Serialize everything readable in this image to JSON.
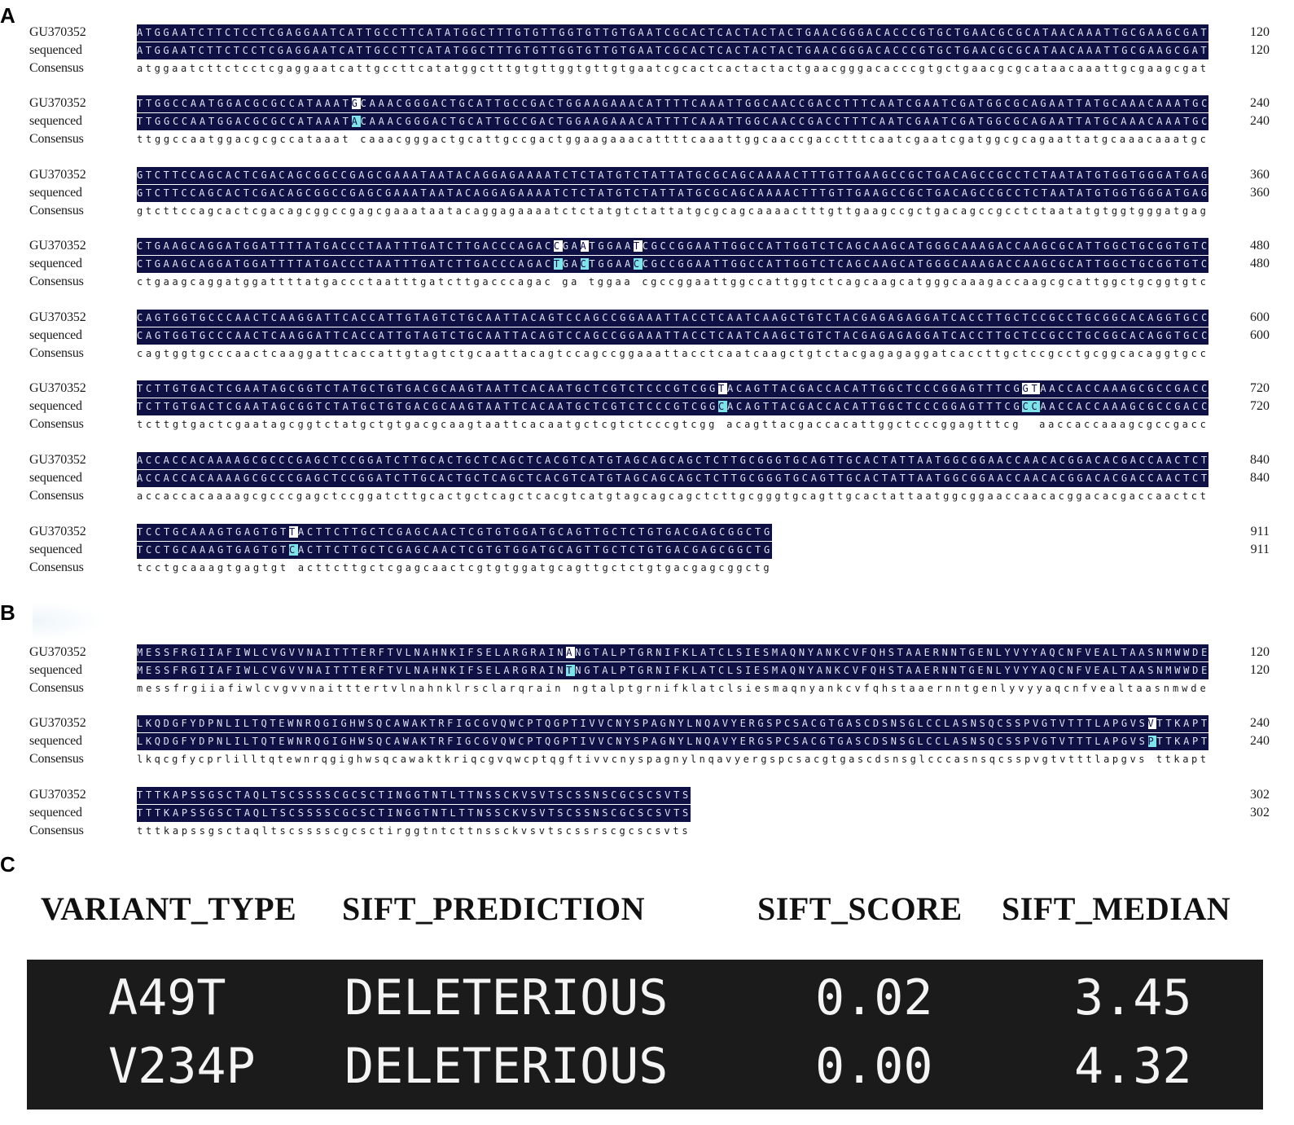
{
  "panels": {
    "a": "A",
    "b": "B",
    "c": "C"
  },
  "row_labels": {
    "ref": "GU370352",
    "seq": "sequenced",
    "cons": "Consensus"
  },
  "colors": {
    "aligned_bg": "#0f1044",
    "mismatch_highlight": "#7fe3ea",
    "table_bg": "#1b1b1b"
  },
  "panel_a_blocks": [
    {
      "ref": "ATGGAATCTTCTCCTCGAGGAATCATTGCCTTCATATGGCTTTGTGTTGGTGTTGTGAATCGCACTCACTACTACTGAACGGGACACCCGTGCTGAACGCGCATAACAAATTGCGAAGCGAT",
      "seq": "ATGGAATCTTCTCCTCGAGGAATCATTGCCTTCATATGGCTTTGTGTTGGTGTTGTGAATCGCACTCACTACTACTGAACGGGACACCCGTGCTGAACGCGCATAACAAATTGCGAAGCGAT",
      "cons": "atggaatcttctcctcgaggaatcattgccttcatatggctttgtgttggtgttgtgaatcgcactcactactactgaacgggacacccgtgctgaacgcgcataacaaattgcgaagcgat",
      "num": "120",
      "mismatch": [],
      "width": 1316
    },
    {
      "ref": "TTGGCCAATGGACGCGCCATAAATGCAAACGGGACTGCATTGCCGACTGGAAGAAACATTTTCAAATTGGCAACCGACCTTTCAATCGAATCGATGGCGCAGAATTATGCAAACAAATGC",
      "seq": "TTGGCCAATGGACGCGCCATAAATACAAACGGGACTGCATTGCCGACTGGAAGAAACATTTTCAAATTGGCAACCGACCTTTCAATCGAATCGATGGCGCAGAATTATGCAAACAAATGC",
      "cons": "ttggccaatggacgcgccataaat caaacgggactgcattgccgactggaagaaacattttcaaattggcaaccgacctttcaatcgaatcgatggcgcagaattatgcaaacaaatgc",
      "num": "240",
      "mismatch": [
        24
      ],
      "width": 1316
    },
    {
      "ref": "GTCTTCCAGCACTCGACAGCGGCCGAGCGAAATAATACAGGAGAAAATCTCTATGTCTATTATGCGCAGCAAAACTTTGTTGAAGCCGCTGACAGCCGCCTCTAATATGTGGTGGGATGAG",
      "seq": "GTCTTCCAGCACTCGACAGCGGCCGAGCGAAATAATACAGGAGAAAATCTCTATGTCTATTATGCGCAGCAAAACTTTGTTGAAGCCGCTGACAGCCGCCTCTAATATGTGGTGGGATGAG",
      "cons": "gtcttccagcactcgacagcggccgagcgaaataatacaggagaaaatctctatgtctattatgcgcagcaaaactttgttgaagccgctgacagccgcctctaatatgtggtgggatgag",
      "num": "360",
      "mismatch": [],
      "width": 1316
    },
    {
      "ref": "CTGAAGCAGGATGGATTTTATGACCCTAATTTGATCTTGACCCAGACCGAATGGAATCGCCGGAATTGGCCATTGGTCTCAGCAAGCATGGGCAAAGACCAAGCGCATTGGCTGCGGTGTC",
      "seq": "CTGAAGCAGGATGGATTTTATGACCCTAATTTGATCTTGACCCAGACTGACTGGAACCGCCGGAATTGGCCATTGGTCTCAGCAAGCATGGGCAAAGACCAAGCGCATTGGCTGCGGTGTC",
      "cons": "ctgaagcaggatggattttatgaccctaatttgatcttgacccagac ga tggaa cgccggaattggccattggtctcagcaagcatgggcaaagaccaagcgcattggctgcggtgtc",
      "num": "480",
      "mismatch": [
        47,
        50,
        56
      ],
      "width": 1316
    },
    {
      "ref": "CAGTGGTGCCCAACTCAAGGATTCACCATTGTAGTCTGCAATTACAGTCCAGCCGGAAATTACCTCAATCAAGCTGTCTACGAGAGAGGATCACCTTGCTCCGCCTGCGGCACAGGTGCC",
      "seq": "CAGTGGTGCCCAACTCAAGGATTCACCATTGTAGTCTGCAATTACAGTCCAGCCGGAAATTACCTCAATCAAGCTGTCTACGAGAGAGGATCACCTTGCTCCGCCTGCGGCACAGGTGCC",
      "cons": "cagtggtgcccaactcaaggattcaccattgtagtctgcaattacagtccagccggaaattacctcaatcaagctgtctacgagagaggatcaccttgctccgcctgcggcacaggtgcc",
      "num": "600",
      "mismatch": [],
      "width": 1316
    },
    {
      "ref": "TCTTGTGACTCGAATAGCGGTCTATGCTGTGACGCAAGTAATTCACAATGCTCGTCTCCCGTCGGTACAGTTACGACCACATTGGCTCCCGGAGTTTCGGTAACCACCAAAGCGCCGACC",
      "seq": "TCTTGTGACTCGAATAGCGGTCTATGCTGTGACGCAAGTAATTCACAATGCTCGTCTCCCGTCGGCACAGTTACGACCACATTGGCTCCCGGAGTTTCGCCAACCACCAAAGCGCCGACC",
      "cons": "tcttgtgactcgaatagcggtctatgctgtgacgcaagtaattcacaatgctcgtctcccgtcgg acagttacgaccacattggctcccggagtttcg  aaccaccaaagcgccgacc",
      "num": "720",
      "mismatch": [
        65,
        99,
        100
      ],
      "width": 1316
    },
    {
      "ref": "ACCACCACAAAAGCGCCCGAGCTCCGGATCTTGCACTGCTCAGCTCACGTCATGTAGCAGCAGCTCTTGCGGGTGCAGTTGCACTATTAATGGCGGAACCAACACGGACACGACCAACTCT",
      "seq": "ACCACCACAAAAGCGCCCGAGCTCCGGATCTTGCACTGCTCAGCTCACGTCATGTAGCAGCAGCTCTTGCGGGTGCAGTTGCACTATTAATGGCGGAACCAACACGGACACGACCAACTCT",
      "cons": "accaccacaaaagcgcccgagctccggatcttgcactgctcagctcacgtcatgtagcagcagctcttgcgggtgcagttgcactattaatggcggaaccaacacggacacgaccaactct",
      "num": "840",
      "mismatch": [],
      "width": 1316
    },
    {
      "ref": "TCCTGCAAAGTGAGTGTTACTTCTTGCTCGAGCAACTCGTGTGGATGCAGTTGCTCTGTGACGAGCGGCTG",
      "seq": "TCCTGCAAAGTGAGTGTCACTTCTTGCTCGAGCAACTCGTGTGGATGCAGTTGCTCTGTGACGAGCGGCTG",
      "cons": "tcctgcaaagtgagtgt acttcttgctcgagcaactcgtgtggatgcagttgctctgtgacgagcggctg",
      "num": "911",
      "mismatch": [
        17
      ],
      "width": 780
    }
  ],
  "panel_b_blocks": [
    {
      "ref": "MESSFRGIIAFIWLCVGVVNAITTTERFTVLNAHNKIFSELARGRAINANGTALPTGRNIFKLATCLSIESMAQNYANKCVFQHSTAAERNNTGENLYVYYAQCNFVEALTAASNMWWDE",
      "seq": "MESSFRGIIAFIWLCVGVVNAITTTERFTVLNAHNKIFSELARGRAINTNGTALPTGRNIFKLATCLSIESMAQNYANKCVFQHSTAAERNNTGENLYVYYAQCNFVEALTAASNMWWDE",
      "cons": "messfrgiiafiwlcvgvvnaitttertvlnahnklrsclarqrain ngtalptgrnifklatclsiesmaqnyankcvfqhstaaernntgenlyvyyaqcnfvealtaasnmwde",
      "num": "120",
      "mismatch": [
        48
      ],
      "width": 1316
    },
    {
      "ref": "LKQDGFYDPNLILTQTEWNRQGIGHWSQCAWAKTRFIGCGVQWCPTQGPTIVVCNYSPAGNYLNQAVYERGSPCSACGTGASCDSNSGLCCLASNSQCSSPVGTVTTTLAPGVSVTTKAPT",
      "seq": "LKQDGFYDPNLILTQTEWNRQGIGHWSQCAWAKTRFIGCGVQWCPTQGPTIVVCNYSPAGNYLNQAVYERGSPCSACGTGASCDSNSGLCCLASNSQCSSPVGTVTTTLAPGVSPTTKAPT",
      "cons": "lkqcgfycprlilltqtewnrqgighwsqcawaktkriqcgvqwcptqgftivvcnyspagnylnqavyergspcsacgtgascdsnsglcccasnsqcsspvgtvtttlapgvs ttkapt",
      "num": "240",
      "mismatch": [
        114
      ],
      "width": 1316
    },
    {
      "ref": "TTTKAPSSGSCTAQLTSCSSSSCGCSCTINGGTNTLTTNSSCKVSVTSCSSNSCGCSCSVTS",
      "seq": "TTTKAPSSGSCTAQLTSCSSSSCGCSCTINGGTNTLTTNSSCKVSVTSCSSNSCGCSCSVTS",
      "cons": "tttkapssgsctaqltscsssscgcsctirggtntcttnssckvsvtscssrscgcscsvts",
      "num": "302",
      "mismatch": [],
      "width": 680
    }
  ],
  "table": {
    "headers": [
      "VARIANT_TYPE",
      "SIFT_PREDICTION",
      "SIFT_SCORE",
      "SIFT_MEDIAN"
    ],
    "rows": [
      [
        "A49T",
        "DELETERIOUS",
        "0.02",
        "3.45"
      ],
      [
        "V234P",
        "DELETERIOUS",
        "0.00",
        "4.32"
      ]
    ]
  }
}
